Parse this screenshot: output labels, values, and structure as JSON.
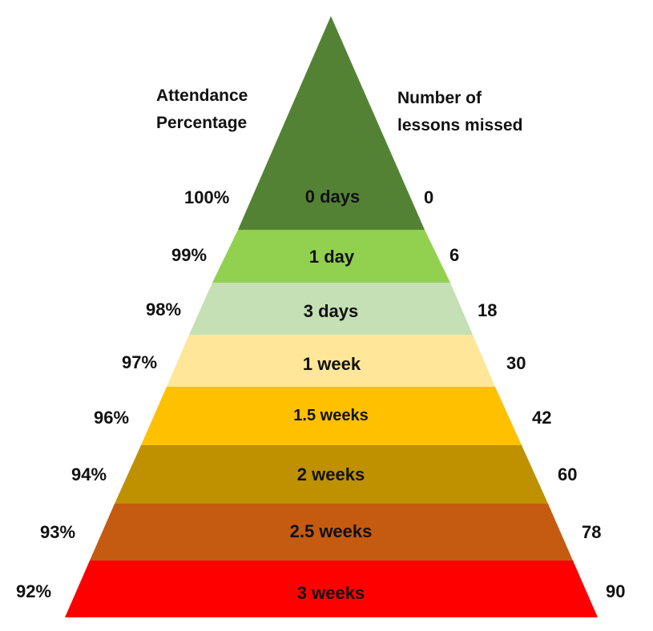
{
  "headers": {
    "left_line1": "Attendance",
    "left_line2": "Percentage",
    "right_line1": "Number of",
    "right_line2": "lessons missed"
  },
  "tiers": [
    {
      "label": "0 days",
      "percentage": "100%",
      "lessons": "0",
      "color": "#548235"
    },
    {
      "label": "1 day",
      "percentage": "99%",
      "lessons": "6",
      "color": "#92D050"
    },
    {
      "label": "3 days",
      "percentage": "98%",
      "lessons": "18",
      "color": "#C5E0B4"
    },
    {
      "label": "1 week",
      "percentage": "97%",
      "lessons": "30",
      "color": "#FFE699"
    },
    {
      "label": "1.5 weeks",
      "percentage": "96%",
      "lessons": "42",
      "color": "#FFC000"
    },
    {
      "label": "2 weeks",
      "percentage": "94%",
      "lessons": "60",
      "color": "#BF9000"
    },
    {
      "label": "2.5 weeks",
      "percentage": "93%",
      "lessons": "78",
      "color": "#C55A11"
    },
    {
      "label": "3 weeks",
      "percentage": "92%",
      "lessons": "90",
      "color": "#FF0000"
    }
  ]
}
